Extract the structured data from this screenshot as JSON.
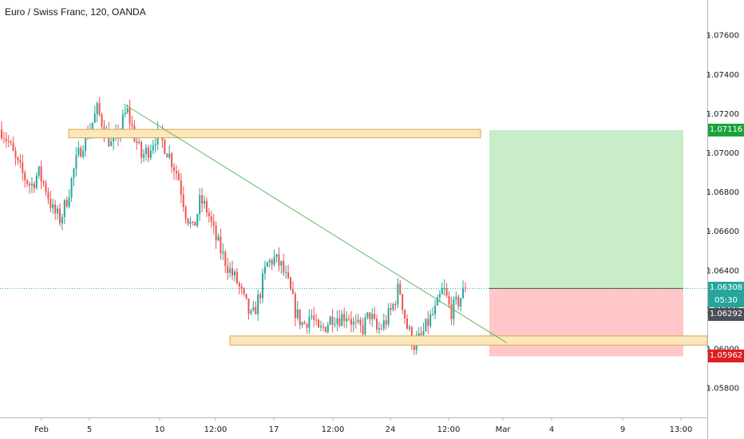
{
  "header": {
    "title": "Euro / Swiss Franc, 120, OANDA"
  },
  "price_axis": {
    "ticks": [
      "1.07600",
      "1.07400",
      "1.07200",
      "1.07000",
      "1.06800",
      "1.06600",
      "1.06400",
      "1.06200",
      "1.06000",
      "1.05800"
    ]
  },
  "time_axis": {
    "labels": [
      "Feb",
      "5",
      "10",
      "12:00",
      "17",
      "12:00",
      "24",
      "12:00",
      "Mar",
      "4",
      "9",
      "13:00"
    ]
  },
  "badges": {
    "tp": {
      "text": "1.07116",
      "color": "#1aa33b"
    },
    "last": {
      "text": "1.06308",
      "color": "#26a69a"
    },
    "timer": {
      "text": "05:30",
      "color": "#26a69a"
    },
    "mid": {
      "text": "1.06292",
      "color": "#4a4f5a"
    },
    "sl": {
      "text": "1.05962",
      "color": "#e01e1e"
    }
  },
  "colors": {
    "up": "#26a69a",
    "down": "#ef5350",
    "trendline": "#5cb85c",
    "zone_fill": "#fbe7bd",
    "zone_border": "#d9a94a",
    "profit": "#c8edc8",
    "loss": "#ffc7c7"
  },
  "chart_data": {
    "type": "candlestick",
    "symbol": "Euro / Swiss Franc",
    "interval": "120",
    "source": "OANDA",
    "y_range": [
      1.0565,
      1.0778
    ],
    "last_price": 1.06308,
    "position": {
      "type": "long",
      "entry": 1.06308,
      "take_profit": 1.07116,
      "stop_loss": 1.05962
    },
    "resistance_zone": [
      1.07077,
      1.0712
    ],
    "support_zone": [
      1.06019,
      1.06066
    ],
    "trendline": {
      "from": 1.0725,
      "to": 1.0603
    },
    "candle_path": [
      1.0712,
      1.0705,
      1.0695,
      1.0688,
      1.0683,
      1.069,
      1.0682,
      1.067,
      1.0666,
      1.0678,
      1.0694,
      1.0705,
      1.0712,
      1.0722,
      1.0712,
      1.0703,
      1.0711,
      1.0722,
      1.0709,
      1.0698,
      1.0702,
      1.0709,
      1.0705,
      1.0697,
      1.0688,
      1.067,
      1.066,
      1.0676,
      1.067,
      1.0657,
      1.0648,
      1.064,
      1.0634,
      1.0624,
      1.0615,
      1.0627,
      1.0643,
      1.0646,
      1.0642,
      1.0632,
      1.0618,
      1.0612,
      1.0618,
      1.0608,
      1.0612,
      1.0617,
      1.0616,
      1.0618,
      1.0611,
      1.061,
      1.0618,
      1.0609,
      1.0613,
      1.062,
      1.0632,
      1.0612,
      1.0602,
      1.0606,
      1.0614,
      1.062,
      1.0631,
      1.0619,
      1.0624,
      1.06308
    ]
  }
}
